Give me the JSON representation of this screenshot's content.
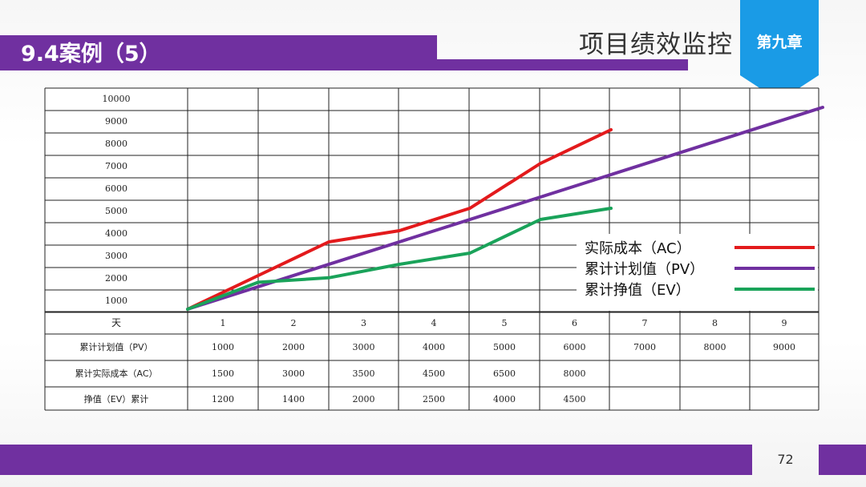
{
  "header": {
    "title": "9.4案例（5）",
    "chapter_heading": "项目绩效监控",
    "chapter_tag": "第九章"
  },
  "footer": {
    "page_number": "72"
  },
  "colors": {
    "brand_purple": "#7030a0",
    "tag_blue": "#1a9be6",
    "ac_red": "#e31a1c",
    "pv_purple": "#7030a0",
    "ev_green": "#1aa35a"
  },
  "chart_data": {
    "type": "line",
    "y_ticks": [
      "10000",
      "9000",
      "8000",
      "7000",
      "6000",
      "5000",
      "4000",
      "3000",
      "2000",
      "1000"
    ],
    "ylim": [
      0,
      10000
    ],
    "x_axis_label": "天",
    "categories": [
      "1",
      "2",
      "3",
      "4",
      "5",
      "6",
      "7",
      "8",
      "9"
    ],
    "series": [
      {
        "name": "实际成本（AC）",
        "color": "#e31a1c",
        "x": [
          0,
          1,
          2,
          3,
          4,
          5,
          5.6,
          6
        ],
        "y": [
          0,
          1500,
          3000,
          3500,
          4500,
          6500,
          7400,
          8000
        ]
      },
      {
        "name": "累计计划值（PV）",
        "color": "#7030a0",
        "x": [
          0,
          9
        ],
        "y": [
          0,
          9000
        ]
      },
      {
        "name": "累计挣值（EV）",
        "color": "#1aa35a",
        "x": [
          0,
          1,
          2,
          3,
          4,
          5,
          6
        ],
        "y": [
          0,
          1200,
          1400,
          2000,
          2500,
          4000,
          4500
        ]
      }
    ],
    "table": {
      "rows": [
        {
          "label": "累计计划值（PV）",
          "values": [
            "1000",
            "2000",
            "3000",
            "4000",
            "5000",
            "6000",
            "7000",
            "8000",
            "9000"
          ]
        },
        {
          "label": "累计实际成本（AC）",
          "values": [
            "1500",
            "3000",
            "3500",
            "4500",
            "6500",
            "8000",
            "",
            "",
            ""
          ]
        },
        {
          "label": "挣值（EV）累计",
          "values": [
            "1200",
            "1400",
            "2000",
            "2500",
            "4000",
            "4500",
            "",
            "",
            ""
          ]
        }
      ]
    },
    "legend_position": "right"
  }
}
